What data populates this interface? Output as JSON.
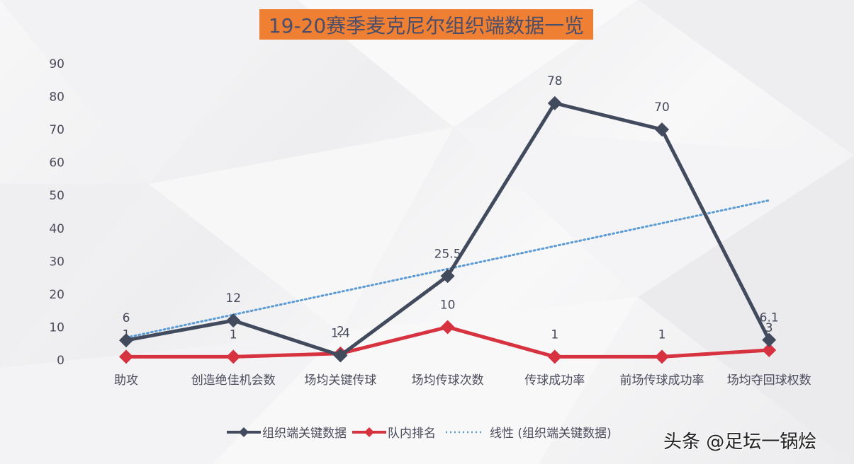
{
  "title": "19-20赛季麦克尼尔组织端数据一览",
  "watermark": "头条 @足坛一锅烩",
  "colors": {
    "title_bg": "#ee7f33",
    "title_text": "#4a4e6a",
    "series_key": "#414b5d",
    "series_rank": "#d7323f",
    "trendline": "#5b9bd5"
  },
  "legend": [
    {
      "label": "组织端关键数据",
      "style": "line-diamond",
      "color": "#414b5d"
    },
    {
      "label": "队内排名",
      "style": "line-diamond",
      "color": "#d7323f"
    },
    {
      "label": "线性 (组织端关键数据)",
      "style": "dotted",
      "color": "#5b9bd5"
    }
  ],
  "chart_data": {
    "type": "line",
    "title": "19-20赛季麦克尼尔组织端数据一览",
    "xlabel": "",
    "ylabel": "",
    "ylim": [
      0,
      90
    ],
    "yticks": [
      0,
      10,
      20,
      30,
      40,
      50,
      60,
      70,
      80,
      90
    ],
    "grid": false,
    "legend_position": "bottom",
    "categories": [
      "助攻",
      "创造绝佳机会数",
      "场均关键传球",
      "场均传球次数",
      "传球成功率",
      "前场传球成功率",
      "场均夺回球权数"
    ],
    "series": [
      {
        "name": "组织端关键数据",
        "values": [
          6,
          12,
          1.4,
          25.5,
          78,
          70,
          6.1
        ],
        "marker": "diamond",
        "color": "#414b5d"
      },
      {
        "name": "队内排名",
        "values": [
          1,
          1,
          2,
          10,
          1,
          1,
          3
        ],
        "marker": "diamond",
        "color": "#d7323f"
      },
      {
        "name": "线性 (组织端关键数据)",
        "type": "trendline-linear",
        "values": [
          7.1,
          14.0,
          20.9,
          27.8,
          34.7,
          41.6,
          48.5
        ],
        "style": "dotted",
        "color": "#5b9bd5"
      }
    ]
  }
}
